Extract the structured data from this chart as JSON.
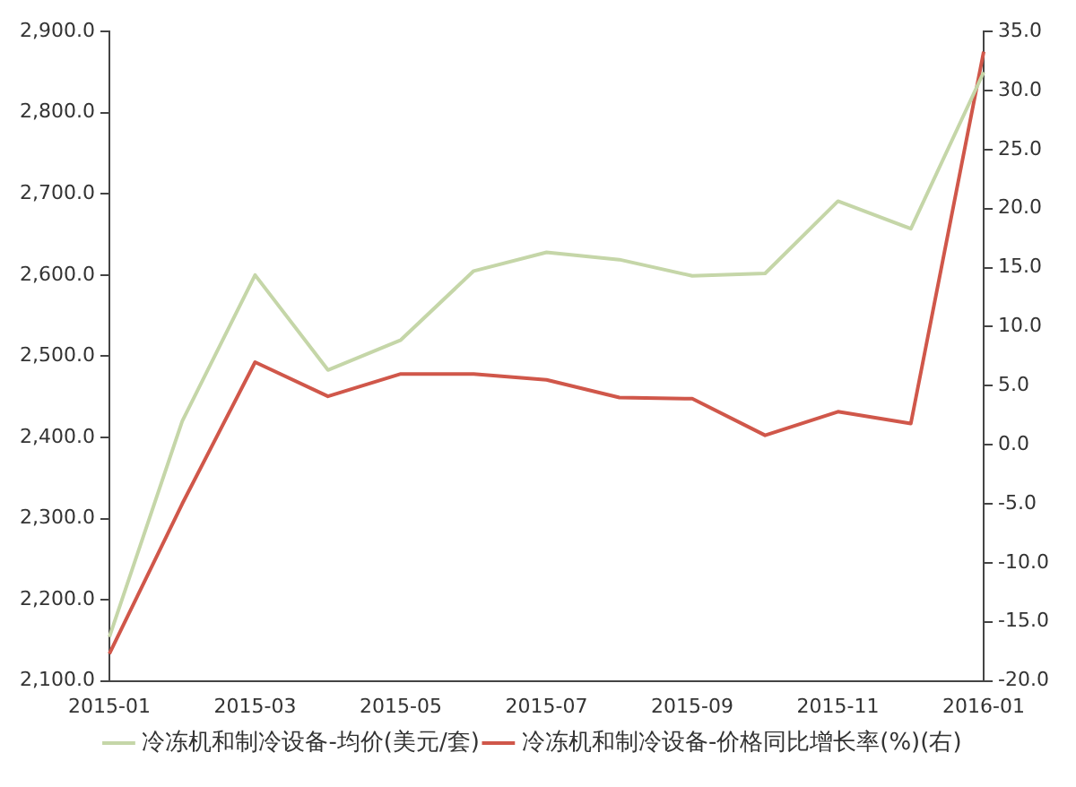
{
  "chart_data": {
    "type": "line",
    "categories": [
      "2015-01",
      null,
      "2015-03",
      null,
      "2015-05",
      null,
      "2015-07",
      null,
      "2015-09",
      null,
      "2015-11",
      null,
      "2016-01"
    ],
    "series": [
      {
        "name": "冷冻机和制冷设备-均价(美元/套)",
        "color": "#c5d6a8",
        "values": [
          2154,
          2420,
          2600,
          2483,
          2520,
          2605,
          2628,
          2619,
          2599,
          2602,
          2691,
          2657,
          2850
        ]
      },
      {
        "name": "冷冻机和制冷设备-价格同比增长率(%)(右)",
        "color": "#d0574a",
        "axis": "y2",
        "values": [
          -17.7,
          -5,
          7.0,
          4.1,
          6.0,
          6.0,
          5.5,
          4.0,
          3.9,
          0.8,
          2.8,
          1.8,
          33.3
        ]
      }
    ],
    "ylim": [
      2100,
      2900
    ],
    "yticks": [
      {
        "value": 2100,
        "label": "2,100.0"
      },
      {
        "value": 2200,
        "label": "2,200.0"
      },
      {
        "value": 2300,
        "label": "2,300.0"
      },
      {
        "value": 2400,
        "label": "2,400.0"
      },
      {
        "value": 2500,
        "label": "2,500.0"
      },
      {
        "value": 2600,
        "label": "2,600.0"
      },
      {
        "value": 2700,
        "label": "2,700.0"
      },
      {
        "value": 2800,
        "label": "2,800.0"
      },
      {
        "value": 2900,
        "label": "2,900.0"
      }
    ],
    "y2lim": [
      -20,
      35
    ],
    "y2ticks": [
      {
        "value": -20,
        "label": "-20.0"
      },
      {
        "value": -15,
        "label": "-15.0"
      },
      {
        "value": -10,
        "label": "-10.0"
      },
      {
        "value": -5,
        "label": "-5.0"
      },
      {
        "value": 0,
        "label": "0.0"
      },
      {
        "value": 5,
        "label": "5.0"
      },
      {
        "value": 10,
        "label": "10.0"
      },
      {
        "value": 15,
        "label": "15.0"
      },
      {
        "value": 20,
        "label": "20.0"
      },
      {
        "value": 25,
        "label": "25.0"
      },
      {
        "value": 30,
        "label": "30.0"
      },
      {
        "value": 35,
        "label": "35.0"
      }
    ],
    "grid": false,
    "legend": "bottom",
    "marker": "none",
    "line_style": "solid"
  }
}
